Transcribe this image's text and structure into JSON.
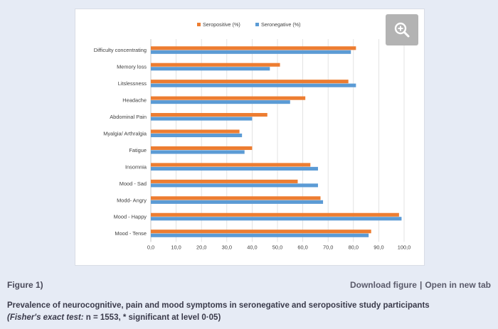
{
  "figure": {
    "label": "Figure 1)",
    "download_label": "Download figure",
    "separator": "|",
    "open_label": "Open in new tab",
    "caption_main": "Prevalence of neurocognitive, pain and mood symptoms in seronegative and seropositive study participants",
    "caption_test": "(Fisher's exact test:",
    "caption_rest": " n = 1553, * significant at level 0·05)",
    "zoom_icon": "zoom-in-icon"
  },
  "chart_data": {
    "type": "bar",
    "orientation": "horizontal",
    "categories": [
      "Difficulty concentrating",
      "Memory loss",
      "Litslessness",
      "Headache",
      "Abdominal Pain",
      "Myalgia/ Arthralgia",
      "Fatigue",
      "Insomnia",
      "Mood - Sad",
      "Modd- Angry",
      "Mood - Happy",
      "Mood - Tense"
    ],
    "series": [
      {
        "name": "Seropositive (%)",
        "color": "#ed7d31",
        "values": [
          81,
          51,
          78,
          61,
          46,
          35,
          40,
          63,
          58,
          67,
          98,
          87
        ]
      },
      {
        "name": "Seronegative (%)",
        "color": "#5b9bd5",
        "values": [
          79,
          47,
          81,
          55,
          40,
          36,
          37,
          66,
          66,
          68,
          99,
          86
        ]
      }
    ],
    "x_ticks": [
      "0,0",
      "10,0",
      "20,0",
      "30,0",
      "40,0",
      "50,0",
      "60,0",
      "70,0",
      "80,0",
      "90,0",
      "100,0"
    ],
    "xlim": [
      0,
      100
    ],
    "grid": true,
    "legend_position": "top"
  }
}
